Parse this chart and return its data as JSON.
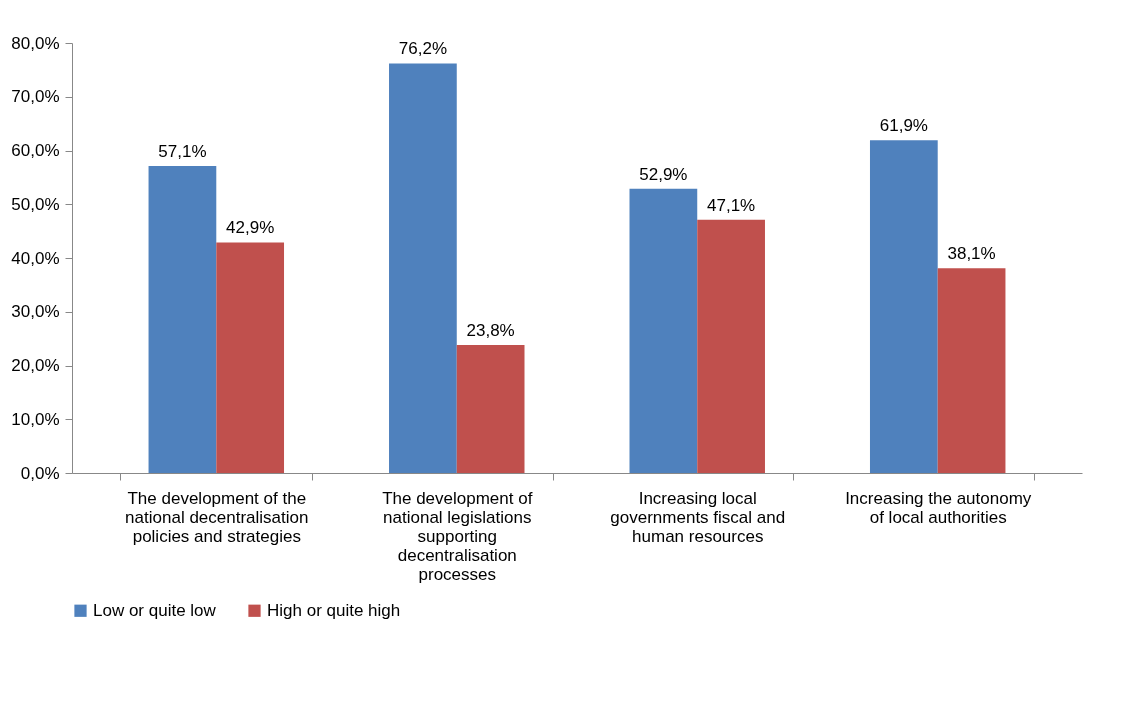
{
  "chart_data": {
    "type": "bar",
    "categories": [
      "The development of the national decentralisation policies and strategies",
      "The development of national legislations supporting decentralisation processes",
      "Increasing local governments fiscal and human resources",
      "Increasing the autonomy of local authorities"
    ],
    "series": [
      {
        "name": "Low or quite low",
        "color": "#4f81bd",
        "values": [
          57.1,
          76.2,
          52.9,
          61.9
        ],
        "value_labels": [
          "57,1%",
          "76,2%",
          "52,9%",
          "61,9%"
        ]
      },
      {
        "name": "High or quite high",
        "color": "#c0504d",
        "values": [
          42.9,
          23.8,
          47.1,
          38.1
        ],
        "value_labels": [
          "42,9%",
          "23,8%",
          "47,1%",
          "38,1%"
        ]
      }
    ],
    "ylim": [
      0,
      80
    ],
    "yticks": [
      {
        "value": 0,
        "label": "0,0%"
      },
      {
        "value": 10,
        "label": "10,0%"
      },
      {
        "value": 20,
        "label": "20,0%"
      },
      {
        "value": 30,
        "label": "30,0%"
      },
      {
        "value": 40,
        "label": "40,0%"
      },
      {
        "value": 50,
        "label": "50,0%"
      },
      {
        "value": 60,
        "label": "60,0%"
      },
      {
        "value": 70,
        "label": "70,0%"
      },
      {
        "value": 80,
        "label": "80,0%"
      }
    ],
    "grid": false,
    "legend": "bottom"
  }
}
